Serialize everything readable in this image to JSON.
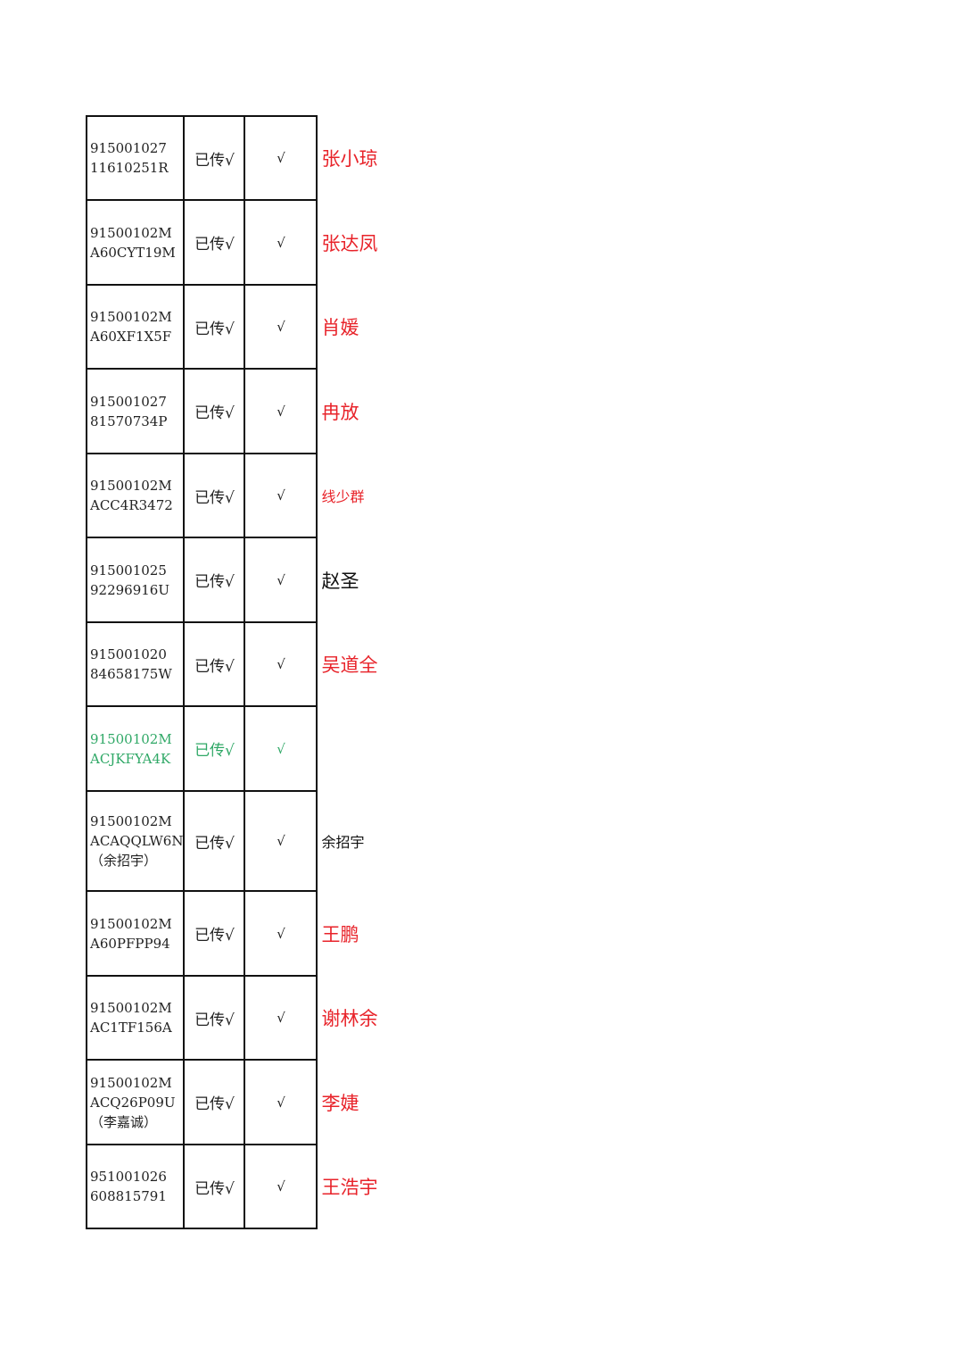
{
  "rows": [
    {
      "code": "915001027\n11610251R",
      "status": "已传√",
      "check": "√",
      "name": "张小琼",
      "name_color": "#e8232a",
      "name_size": "big",
      "row_color": "#222222"
    },
    {
      "code": "91500102M\nA60CYT19M",
      "status": "已传√",
      "check": "√",
      "name": "张达凤",
      "name_color": "#e8232a",
      "name_size": "big",
      "row_color": "#222222"
    },
    {
      "code": "91500102M\nA60XF1X5F",
      "status": "已传√",
      "check": "√",
      "name": "肖媛",
      "name_color": "#e8232a",
      "name_size": "big",
      "row_color": "#222222"
    },
    {
      "code": "915001027\n81570734P",
      "status": "已传√",
      "check": "√",
      "name": "冉放",
      "name_color": "#e8232a",
      "name_size": "big",
      "row_color": "#222222"
    },
    {
      "code": "91500102M\nACC4R3472",
      "status": "已传√",
      "check": "√",
      "name": "线少群",
      "name_color": "#e8232a",
      "name_size": "small",
      "row_color": "#222222"
    },
    {
      "code": "915001025\n92296916U",
      "status": "已传√",
      "check": "√",
      "name": "赵圣",
      "name_color": "#111111",
      "name_size": "big",
      "row_color": "#222222"
    },
    {
      "code": "915001020\n84658175W",
      "status": "已传√",
      "check": "√",
      "name": "吴道全",
      "name_color": "#e8232a",
      "name_size": "big",
      "row_color": "#222222"
    },
    {
      "code": "91500102M\nACJKFYA4K",
      "status": "已传√",
      "check": "√",
      "name": "",
      "name_color": "#111111",
      "name_size": "big",
      "row_color": "#2fa866"
    },
    {
      "code": "91500102M\nACAQQLW6N\n（余招宇）",
      "status": "已传√",
      "check": "√",
      "name": "余招宇",
      "name_color": "#111111",
      "name_size": "small",
      "row_color": "#222222"
    },
    {
      "code": "91500102M\nA60PFPP94",
      "status": "已传√",
      "check": "√",
      "name": "王鹏",
      "name_color": "#e8232a",
      "name_size": "big",
      "row_color": "#222222"
    },
    {
      "code": "91500102M\nAC1TF156A",
      "status": "已传√",
      "check": "√",
      "name": "谢林余",
      "name_color": "#e8232a",
      "name_size": "big",
      "row_color": "#222222"
    },
    {
      "code": "91500102M\nACQ26P09U\n（李嘉诚）",
      "status": "已传√",
      "check": "√",
      "name": "李婕",
      "name_color": "#e8232a",
      "name_size": "big",
      "row_color": "#222222"
    },
    {
      "code": "951001026\n608815791",
      "status": "已传√",
      "check": "√",
      "name": "王浩宇",
      "name_color": "#e8232a",
      "name_size": "big",
      "row_color": "#222222"
    }
  ]
}
